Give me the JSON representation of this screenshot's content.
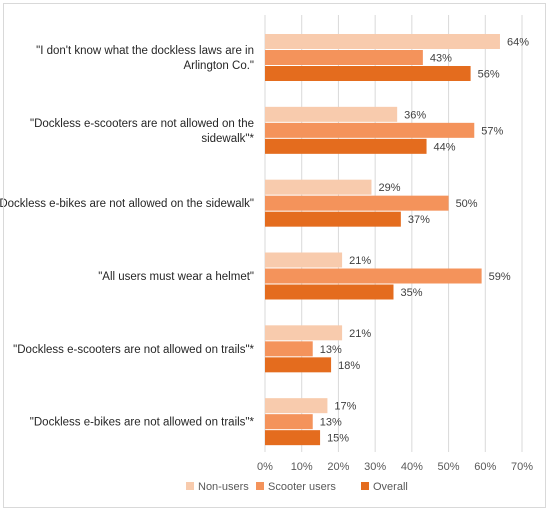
{
  "chart_data": {
    "type": "bar",
    "orientation": "horizontal",
    "categories": [
      "\"I don't know what the dockless laws are in Arlington Co.\"",
      "\"Dockless e-scooters are not allowed on the sidewalk\"*",
      "\"Dockless e-bikes are not allowed on the sidewalk\"",
      "\"All users must wear a helmet\"",
      "\"Dockless e-scooters are not allowed on trails\"*",
      "\"Dockless e-bikes are not allowed on trails\"*"
    ],
    "category_lines": [
      [
        "\"I don't know what the dockless laws are in",
        "Arlington Co.\""
      ],
      [
        "\"Dockless e-scooters are not allowed on the",
        "sidewalk\"*"
      ],
      [
        "\"Dockless e-bikes are not allowed on the sidewalk\""
      ],
      [
        "\"All users must wear a helmet\""
      ],
      [
        "\"Dockless e-scooters are not allowed on trails\"*"
      ],
      [
        "\"Dockless e-bikes are not allowed on trails\"*"
      ]
    ],
    "series": [
      {
        "name": "Non-users",
        "color": "#f8cbad",
        "values": [
          64,
          36,
          29,
          21,
          21,
          17
        ],
        "labels": [
          "64%",
          "36%",
          "29%",
          "21%",
          "21%",
          "17%"
        ]
      },
      {
        "name": "Scooter users",
        "color": "#f4935b",
        "values": [
          43,
          57,
          50,
          59,
          13,
          13
        ],
        "labels": [
          "43%",
          "57%",
          "50%",
          "59%",
          "13%",
          "13%"
        ]
      },
      {
        "name": "Overall",
        "color": "#e46c1e",
        "values": [
          56,
          44,
          37,
          35,
          18,
          15
        ],
        "labels": [
          "56%",
          "44%",
          "37%",
          "35%",
          "18%",
          "15%"
        ]
      }
    ],
    "xlim": [
      0,
      70
    ],
    "x_ticks": [
      "0%",
      "10%",
      "20%",
      "30%",
      "40%",
      "50%",
      "60%",
      "70%"
    ],
    "grid": true,
    "legend_position": "bottom",
    "title": "",
    "xlabel": "",
    "ylabel": ""
  }
}
